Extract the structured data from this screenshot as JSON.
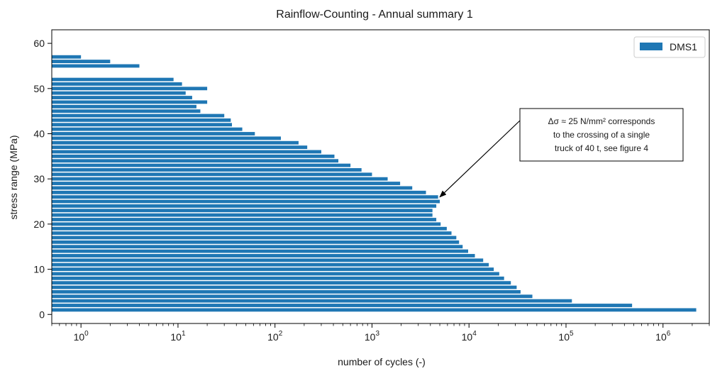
{
  "chart_data": {
    "type": "bar",
    "orientation": "horizontal",
    "title": "Rainflow-Counting - Annual summary 1",
    "xlabel": "number of cycles (-)",
    "ylabel": "stress range (MPa)",
    "xscale": "log",
    "xlim": [
      0.5,
      3000000
    ],
    "ylim": [
      -2,
      63
    ],
    "x_ticks": [
      {
        "base": "10",
        "exp": "0"
      },
      {
        "base": "10",
        "exp": "1"
      },
      {
        "base": "10",
        "exp": "2"
      },
      {
        "base": "10",
        "exp": "3"
      },
      {
        "base": "10",
        "exp": "4"
      },
      {
        "base": "10",
        "exp": "5"
      },
      {
        "base": "10",
        "exp": "6"
      }
    ],
    "y_ticks": [
      "0",
      "10",
      "20",
      "30",
      "40",
      "50",
      "60"
    ],
    "grid": false,
    "legend": {
      "position": "top-right",
      "entries": [
        "DMS1"
      ]
    },
    "series": [
      {
        "name": "DMS1",
        "color": "#1f77b4",
        "stress_range": [
          1,
          2,
          3,
          4,
          5,
          6,
          7,
          8,
          9,
          10,
          11,
          12,
          13,
          14,
          15,
          16,
          17,
          18,
          19,
          20,
          21,
          22,
          23,
          24,
          25,
          26,
          27,
          28,
          29,
          30,
          31,
          32,
          33,
          34,
          35,
          36,
          37,
          38,
          39,
          40,
          41,
          42,
          43,
          44,
          45,
          46,
          47,
          48,
          49,
          50,
          51,
          52,
          55,
          56,
          57
        ],
        "cycles": [
          2200000,
          480000,
          115000,
          45000,
          34000,
          31000,
          27000,
          23000,
          20500,
          18000,
          16000,
          14000,
          11500,
          9800,
          8600,
          7900,
          7400,
          6600,
          5900,
          5100,
          4600,
          4200,
          4200,
          4600,
          5000,
          4800,
          3600,
          2600,
          1950,
          1450,
          1000,
          780,
          600,
          450,
          410,
          300,
          215,
          175,
          115,
          62,
          46,
          36,
          35,
          30,
          17,
          15.5,
          20,
          14,
          12,
          20,
          11,
          9,
          4,
          2,
          1
        ]
      }
    ],
    "annotations": [
      {
        "lines": [
          "Δσ ≈ 25 N/mm² corresponds",
          "to the crossing of a single",
          "truck of 40 t, see figure 4"
        ],
        "points_to": {
          "cycles": 5000,
          "stress_range": 26
        }
      }
    ]
  }
}
